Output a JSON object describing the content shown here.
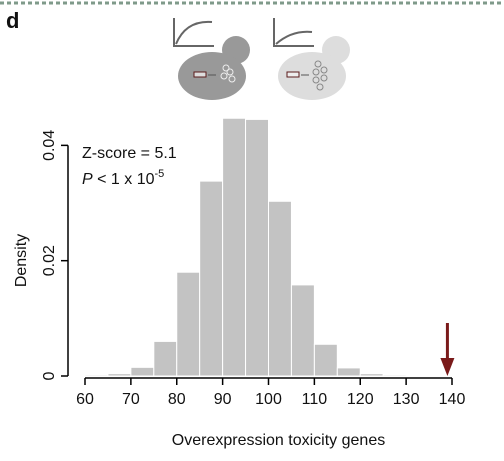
{
  "panel_label": "d",
  "chart_data": {
    "type": "histogram",
    "xlabel": "Overexpression toxicity genes",
    "ylabel": "Density",
    "annotation_line1": "Z-score = 5.1",
    "annotation_line2": {
      "italic": "P",
      "text": " < 1 x 10",
      "superscript": "-5"
    },
    "bins": [
      60,
      65,
      70,
      75,
      80,
      85,
      90,
      95,
      100,
      105,
      110,
      115,
      120,
      125,
      130
    ],
    "values": [
      0.0002,
      0.0004,
      0.0015,
      0.006,
      0.018,
      0.0338,
      0.0447,
      0.0445,
      0.0303,
      0.0158,
      0.0055,
      0.0014,
      0.0004,
      0.0002
    ],
    "color": "#c3c3c3",
    "marker": {
      "value": 139,
      "color": "#7a1a1a"
    },
    "xlim": [
      60,
      140
    ],
    "xticks": [
      60,
      70,
      80,
      90,
      100,
      110,
      120,
      130,
      140
    ],
    "ylim": [
      0,
      0.047
    ],
    "yticks": [
      0,
      0.02,
      0.04
    ]
  }
}
